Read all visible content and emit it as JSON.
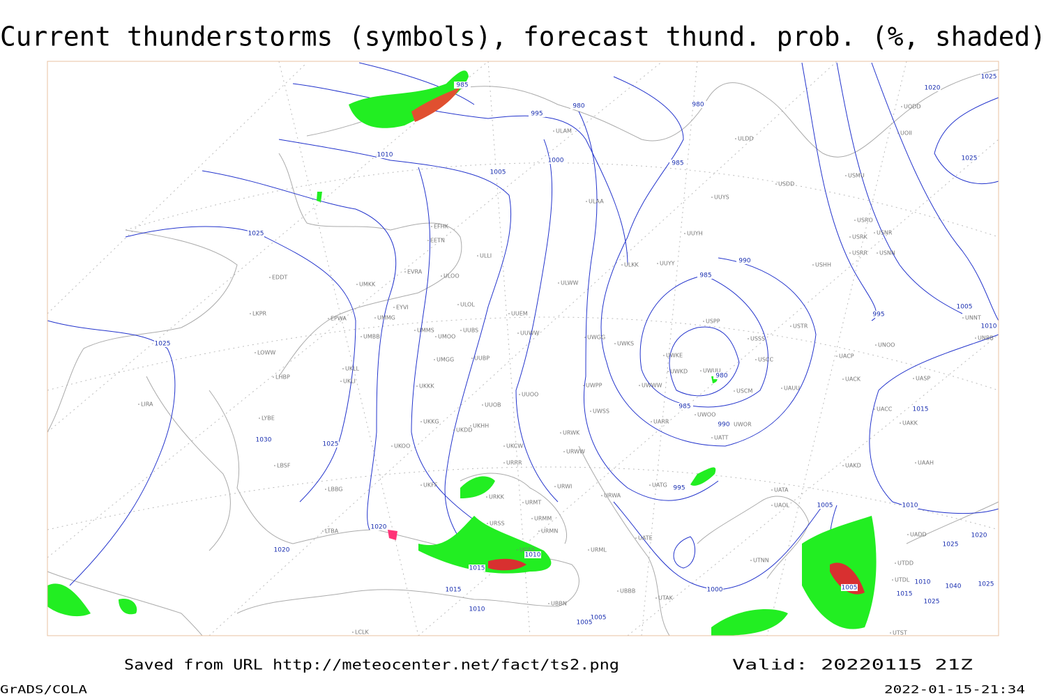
{
  "header": {
    "title": "Current thunderstorms (symbols), forecast thund. prob. (%, shaded)"
  },
  "footer": {
    "source": "Saved from URL http://meteocenter.net/fact/ts2.png",
    "valid": "Valid: 20220115 21Z",
    "software": "GrADS/COLA",
    "timestamp": "2022-01-15-21:34"
  },
  "stations": [
    "EFHK",
    "EETN",
    "EVRA",
    "ULLI",
    "ULOO",
    "ULOL",
    "EDDT",
    "EPWA",
    "LKPR",
    "LOWW",
    "LHBP",
    "LIRA",
    "LYBE",
    "LBSF",
    "LBBG",
    "LTBA",
    "UMKK",
    "EYVI",
    "UMMG",
    "UMBB",
    "UMMS",
    "UMOO",
    "UUBS",
    "UUEM",
    "UUWW",
    "UMGG",
    "UUBP",
    "UKLL",
    "UKLI",
    "UKKK",
    "UUOO",
    "UUOB",
    "UKKG",
    "UKDD",
    "UKHH",
    "UKCW",
    "UKOO",
    "UKFF",
    "URKK",
    "URRR",
    "URMT",
    "URMM",
    "URMN",
    "URSS",
    "UGSS",
    "UBBN",
    "UBBB",
    "UTAK",
    "UATE",
    "UATG",
    "UATA",
    "URWA",
    "URWI",
    "URML",
    "URWW",
    "URWK",
    "UWSS",
    "UWPP",
    "UWGG",
    "UWKS",
    "UWKE",
    "UWKD",
    "UWUU",
    "UWWW",
    "UARR",
    "UWOO",
    "UWOR",
    "UATT",
    "USCM",
    "UAUU",
    "USCC",
    "USSS",
    "USPP",
    "USTR",
    "UACC",
    "UAKK",
    "UAAH",
    "UAKD",
    "UAOL",
    "UACK",
    "UASP",
    "UNOO",
    "UNNT",
    "UNBB",
    "UACP",
    "USHH",
    "USRR",
    "USNN",
    "USNR",
    "USRK",
    "USRO",
    "USMU",
    "USDD",
    "UUYS",
    "UUYH",
    "UUYY",
    "ULKK",
    "ULWW",
    "ULAA",
    "ULAM",
    "ULDD",
    "UODD",
    "UOII",
    "UTNN",
    "UADD",
    "UTDD",
    "UTDL",
    "UTST",
    "LCLK"
  ],
  "isobars": [
    985,
    980,
    995,
    1010,
    1005,
    1000,
    980,
    985,
    1020,
    1025,
    1025,
    990,
    985,
    980,
    985,
    990,
    995,
    1005,
    1010,
    1015,
    1010,
    1005,
    1025,
    1025,
    1030,
    1025,
    1020,
    1020,
    1015,
    1010,
    1015,
    1010,
    1005,
    1005,
    995,
    1000,
    1005,
    1010,
    1015,
    1025,
    1040,
    1025,
    1020,
    1025
  ]
}
